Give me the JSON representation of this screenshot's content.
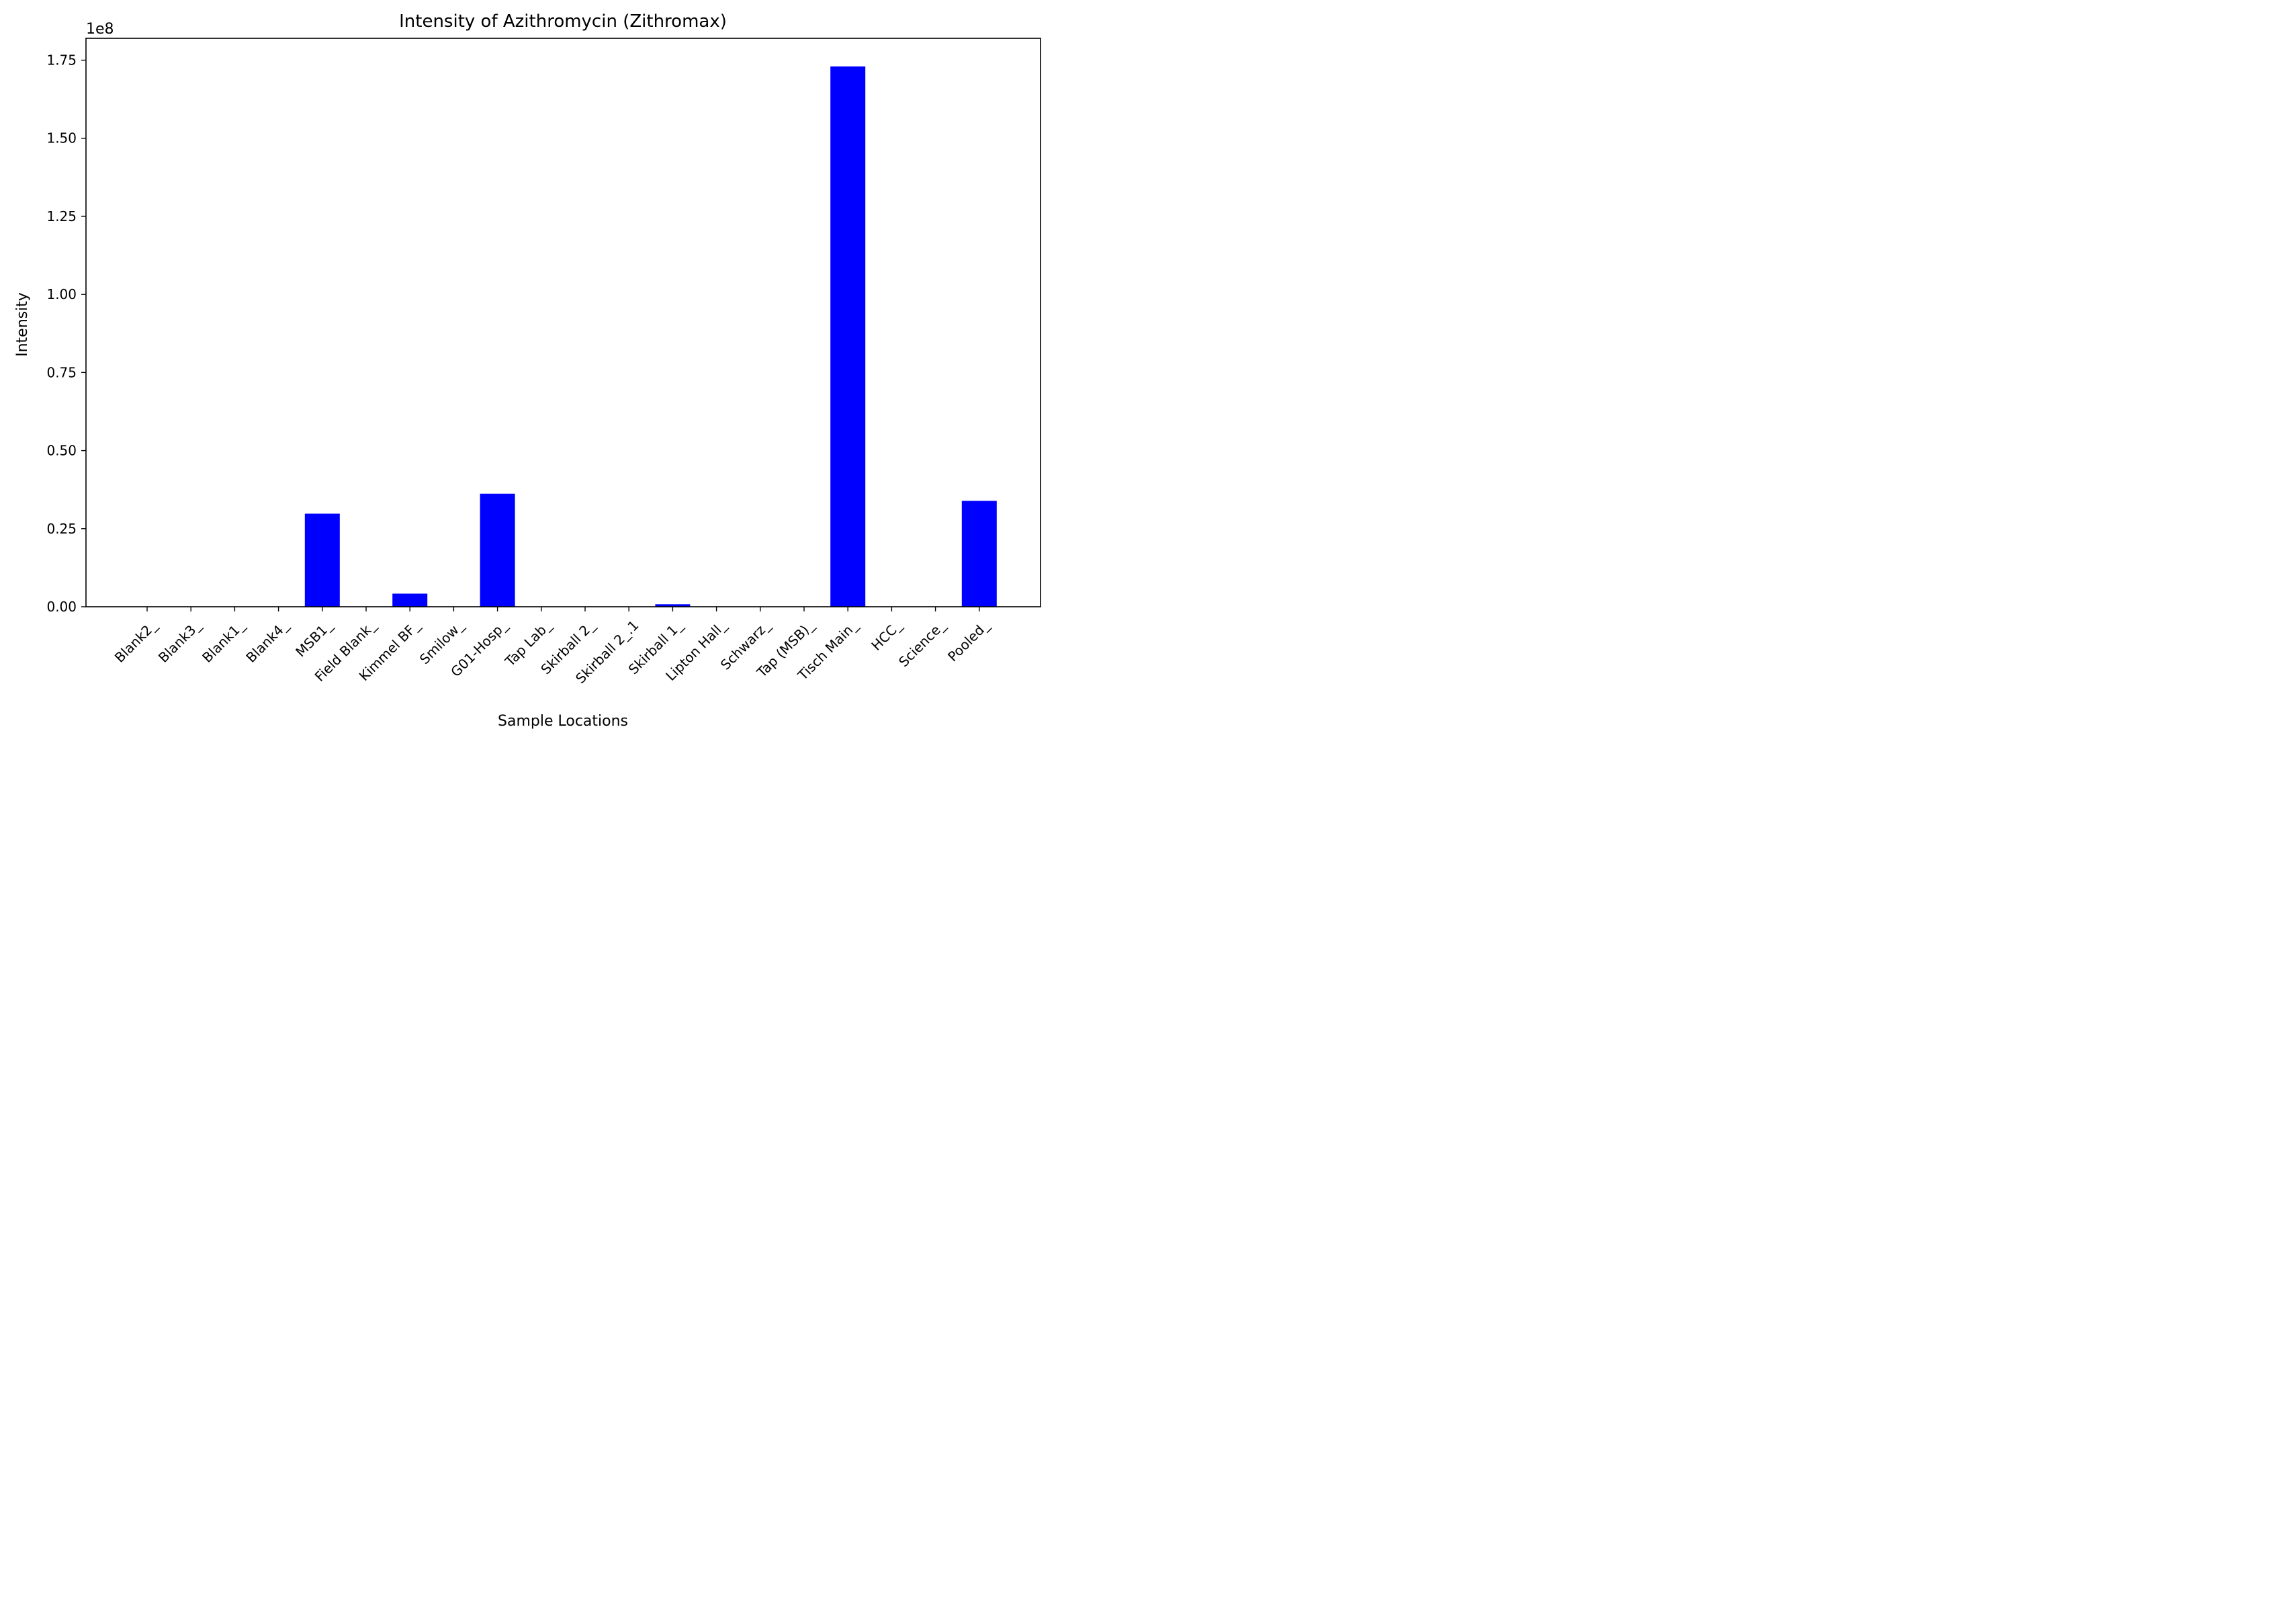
{
  "chart_data": {
    "type": "bar",
    "title": "Intensity of Azithromycin (Zithromax)",
    "xlabel": "Sample Locations",
    "ylabel": "Intensity",
    "y_offset_label": "1e8",
    "y_scale_factor": 100000000,
    "ylim": [
      0,
      182000000
    ],
    "yticks": [
      0,
      25000000,
      50000000,
      75000000,
      100000000,
      125000000,
      150000000,
      175000000
    ],
    "ytick_labels": [
      "0.00",
      "0.25",
      "0.50",
      "0.75",
      "1.00",
      "1.25",
      "1.50",
      "1.75"
    ],
    "grid": false,
    "bar_color": "#0000ff",
    "categories": [
      "Blank2_",
      "Blank3_",
      "Blank1_",
      "Blank4_",
      "MSB1_",
      "Field Blank_",
      "Kimmel BF_",
      "Smilow_",
      "G01-Hosp_",
      "Tap Lab_",
      "Skirball 2_",
      "Skirball 2_.1",
      "Skirball 1_",
      "Lipton Hall_",
      "Schwarz_",
      "Tap (MSB)_",
      "Tisch Main_",
      "HCC_",
      "Science_",
      "Pooled_"
    ],
    "values": [
      0,
      0,
      0,
      0,
      29800000,
      0,
      4200000,
      0,
      36200000,
      0,
      0,
      0,
      800000,
      0,
      0,
      0,
      173000000,
      0,
      0,
      33900000
    ]
  }
}
